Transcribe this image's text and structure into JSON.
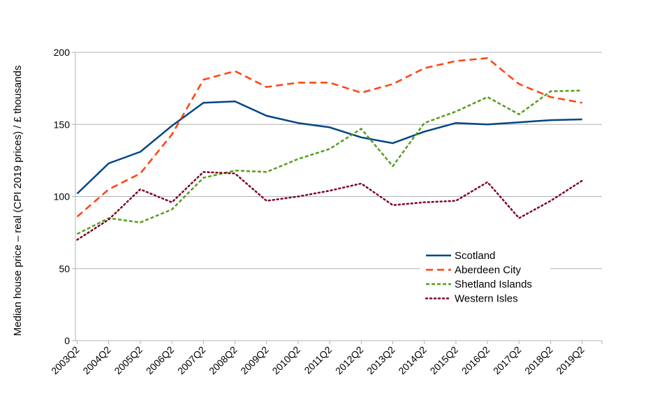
{
  "chart_data": {
    "type": "line",
    "title": "",
    "xlabel": "",
    "ylabel": "Median house price – real (CPI 2019 prices) / £ thousands",
    "ylim": [
      0,
      200
    ],
    "yticks": [
      0,
      50,
      100,
      150,
      200
    ],
    "grid": "horizontal",
    "legend_position": "right-middle",
    "categories": [
      "2003Q2",
      "2004Q2",
      "2005Q2",
      "2006Q2",
      "2007Q2",
      "2008Q2",
      "2009Q2",
      "2010Q2",
      "2011Q2",
      "2012Q2",
      "2013Q2",
      "2014Q2",
      "2015Q2",
      "2016Q2",
      "2017Q2",
      "2018Q2",
      "2019Q2"
    ],
    "series": [
      {
        "name": "Scotland",
        "color": "#004586",
        "style": "solid",
        "values": [
          102,
          123,
          131,
          149,
          165,
          166,
          156,
          151,
          148,
          141,
          137,
          145,
          151,
          150,
          151.5,
          153,
          153.5
        ]
      },
      {
        "name": "Aberdeen City",
        "color": "#ff420e",
        "style": "dashed",
        "values": [
          86,
          105,
          116,
          143,
          181,
          187,
          176,
          179,
          179,
          172,
          178,
          189,
          194,
          196,
          178,
          169,
          165
        ]
      },
      {
        "name": "Shetland Islands",
        "color": "#579d1c",
        "style": "short-dashed",
        "values": [
          74,
          85,
          82,
          91,
          113,
          118,
          117,
          126,
          133,
          147,
          121,
          151,
          159,
          169,
          157,
          173,
          173.5
        ]
      },
      {
        "name": "Western Isles",
        "color": "#7e0021",
        "style": "dotted",
        "values": [
          70,
          84,
          105,
          96,
          117,
          116,
          97,
          100,
          104,
          109,
          94,
          96,
          97,
          110,
          85,
          97,
          111
        ]
      }
    ]
  }
}
